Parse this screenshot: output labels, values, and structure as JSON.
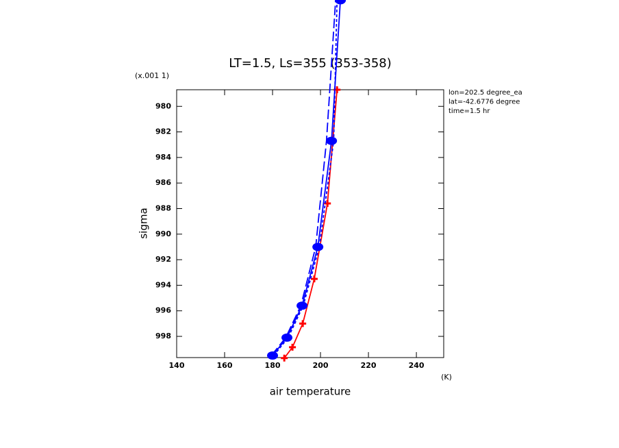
{
  "chart_data": {
    "type": "line",
    "title": "LT=1.5, Ls=355 (353-358)",
    "y_scale_label": "(x.001 1)",
    "xlabel": "air temperature",
    "x_unit": "(K)",
    "ylabel": "sigma",
    "notes": [
      "lon=202.5 degree_ea",
      "lat=-42.6776 degree",
      "time=1.5 hr"
    ],
    "xlim": [
      140,
      251.4
    ],
    "ylim": [
      999.66,
      978.7
    ],
    "xticks": [
      140,
      160,
      180,
      200,
      220,
      240
    ],
    "yticks": [
      980,
      982,
      984,
      986,
      988,
      990,
      992,
      994,
      996,
      998
    ],
    "series": [
      {
        "color": "#ff0000",
        "dash": "solid",
        "marker": "plus",
        "x": [
          184.9,
          188.3,
          192.6,
          197.4,
          202.9,
          206.9
        ],
        "values": [
          999.7,
          998.85,
          997.0,
          993.5,
          987.6,
          978.7
        ]
      },
      {
        "color": "#0000ff",
        "dash": "solid",
        "marker": "blob",
        "x": [
          180,
          186,
          192.3,
          198.9,
          204.6,
          208.3
        ],
        "values": [
          999.5,
          998.1,
          995.6,
          991.0,
          982.7,
          971.7
        ]
      },
      {
        "color": "#0000ff",
        "dash": "long",
        "marker": "none",
        "x": [
          179.5,
          185.5,
          191.8,
          198.0,
          202.5,
          206.3
        ],
        "values": [
          999.5,
          998.1,
          995.6,
          991.0,
          982.7,
          971.7
        ]
      },
      {
        "color": "#0000ff",
        "dash": "short",
        "marker": "none",
        "x": [
          180.5,
          186.5,
          192.8,
          199.5,
          205.5,
          206.9
        ],
        "values": [
          999.5,
          998.1,
          995.6,
          991.0,
          982.7,
          971.7
        ]
      }
    ]
  }
}
